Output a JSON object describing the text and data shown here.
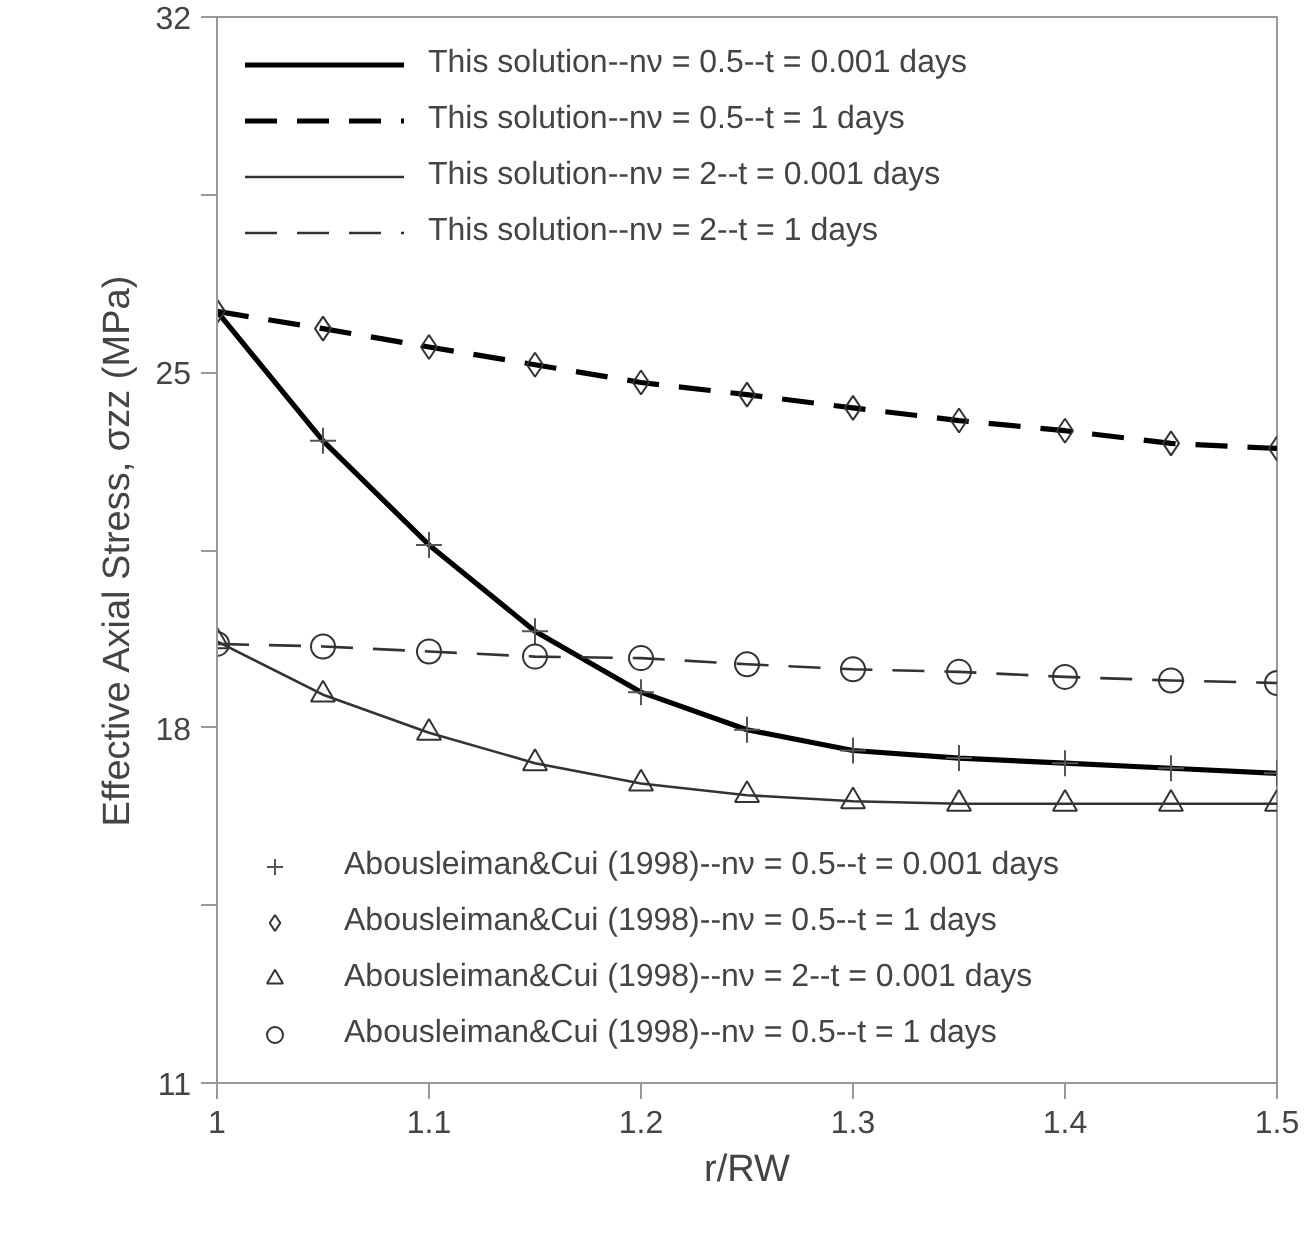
{
  "chart_data": {
    "type": "line",
    "xlabel": "r/RW",
    "ylabel": "Effective Axial Stress, σzz (MPa)",
    "xlim": [
      1,
      1.5
    ],
    "xticks": [
      1,
      1.1,
      1.2,
      1.3,
      1.4,
      1.5
    ],
    "ylim": [
      11,
      32
    ],
    "yticks": [
      11,
      {
        "value": 14.5,
        "label": null
      },
      18,
      {
        "value": 21.5,
        "label": null
      },
      25,
      {
        "value": 28.5,
        "label": null
      },
      32
    ],
    "x": [
      1,
      1.05,
      1.1,
      1.15,
      1.2,
      1.25,
      1.3,
      1.35,
      1.4,
      1.45,
      1.5
    ],
    "legend": "top left",
    "grid": false,
    "series": [
      {
        "name": "This solution--nν = 0.5--t = 0.001 days",
        "line_style": "solid",
        "color": "#000000",
        "values": [
          26.2,
          23.65,
          21.6,
          19.9,
          18.7,
          17.96,
          17.55,
          17.4,
          17.3,
          17.2,
          17.1
        ]
      },
      {
        "name": "This solution--nν = 0.5--t = 1 days",
        "line_style": "dashed",
        "color": "#000000",
        "values": [
          26.2,
          25.86,
          25.5,
          25.15,
          24.8,
          24.56,
          24.3,
          24.05,
          23.85,
          23.6,
          23.5
        ]
      },
      {
        "name": "This solution--nν = 2--t = 0.001 days",
        "line_style": "solid",
        "color": "#333333",
        "values": [
          19.7,
          18.65,
          17.9,
          17.3,
          16.9,
          16.67,
          16.55,
          16.5,
          16.5,
          16.5,
          16.5
        ]
      },
      {
        "name": "This solution--nν = 2--t = 1 days",
        "line_style": "dashed",
        "color": "#333333",
        "values": [
          19.65,
          19.6,
          19.5,
          19.4,
          19.37,
          19.25,
          19.15,
          19.1,
          19.0,
          18.93,
          18.88
        ]
      },
      {
        "name": "Abousleiman&Cui (1998)--nν = 0.5--t = 0.001 days",
        "type": "scatter",
        "marker": "cross",
        "color": "#555555",
        "values": [
          null,
          23.65,
          21.6,
          19.9,
          18.7,
          17.96,
          17.55,
          17.4,
          17.3,
          17.2,
          17.1
        ]
      },
      {
        "name": "Abousleiman&Cui (1998)--nν = 0.5--t = 1 days",
        "type": "scatter",
        "marker": "diamond",
        "color": "#333333",
        "values": [
          26.2,
          25.86,
          25.5,
          25.15,
          24.8,
          24.56,
          24.3,
          24.05,
          23.85,
          23.6,
          23.5
        ]
      },
      {
        "name": "Abousleiman&Cui (1998)--nν = 2--t = 0.001 days",
        "type": "scatter",
        "marker": "triangle",
        "color": "#333333",
        "values": [
          19.7,
          18.65,
          17.9,
          17.3,
          16.9,
          16.67,
          16.55,
          16.5,
          16.5,
          16.5,
          16.5
        ]
      },
      {
        "name": "Abousleiman&Cui (1998)--nν = 0.5--t = 1 days",
        "type": "scatter",
        "marker": "circle",
        "color": "#333333",
        "values": [
          19.65,
          19.6,
          19.5,
          19.4,
          19.37,
          19.25,
          19.15,
          19.1,
          19.0,
          18.93,
          18.88
        ]
      }
    ]
  }
}
